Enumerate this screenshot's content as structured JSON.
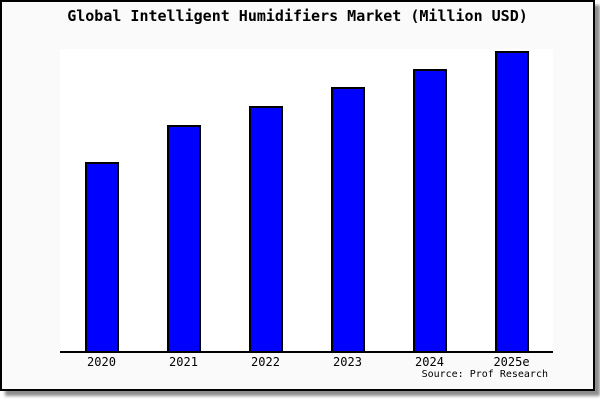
{
  "title": "Global Intelligent Humidifiers Market (Million USD)",
  "source_note": "Source: Prof Research",
  "colors": {
    "bar_fill": "#0000ff",
    "bar_border": "#000000",
    "frame_background": "#fafafa",
    "plot_background": "#ffffff",
    "axis": "#000000",
    "text": "#000000"
  },
  "chart_data": {
    "type": "bar",
    "title": "Global Intelligent Humidifiers Market (Million USD)",
    "categories": [
      "2020",
      "2021",
      "2022",
      "2023",
      "2024",
      "2025e"
    ],
    "values": [
      189,
      226,
      245,
      264,
      282,
      300
    ],
    "xlabel": "",
    "ylabel": "",
    "ylim": [
      0,
      302
    ],
    "y_axis_visible": false,
    "grid": false,
    "legend": false,
    "annotation": "Source: Prof Research"
  }
}
